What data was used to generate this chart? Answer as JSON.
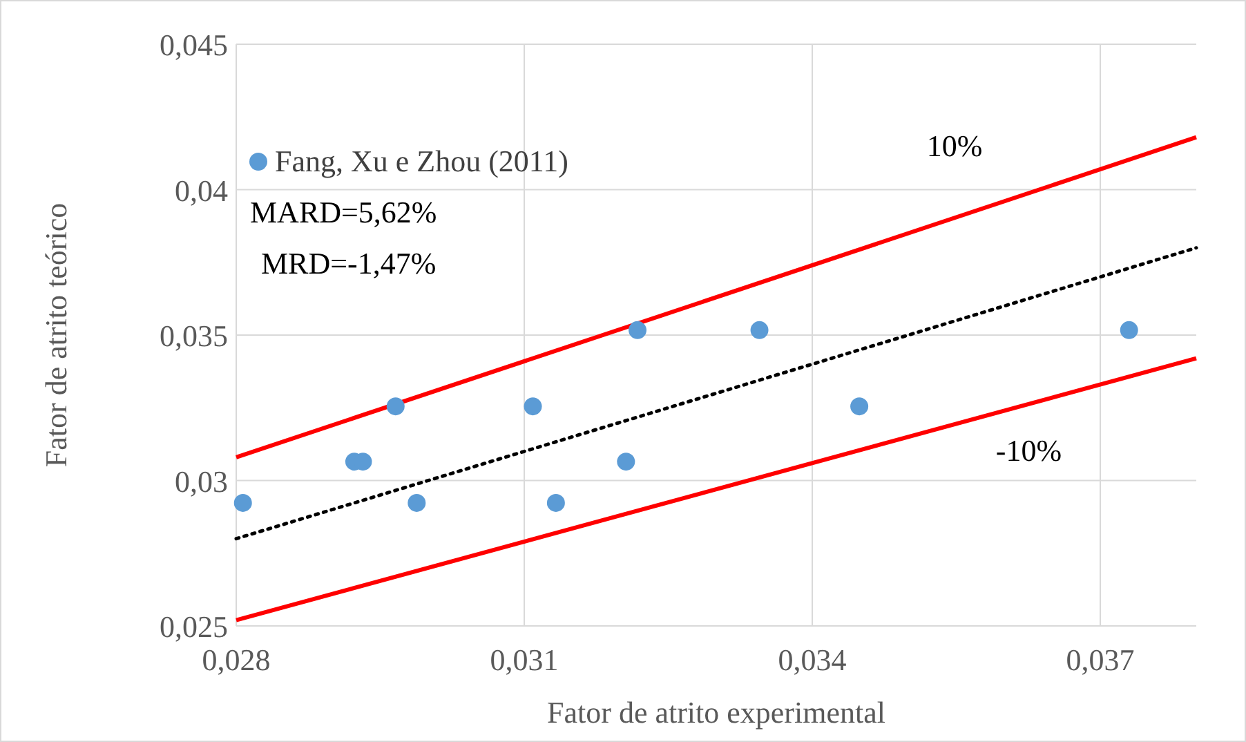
{
  "chart_data": {
    "type": "scatter",
    "xlabel": "Fator de atrito experimental",
    "ylabel": "Fator de atrito teórico",
    "xlim": [
      0.028,
      0.038
    ],
    "ylim": [
      0.025,
      0.045
    ],
    "xticks": [
      {
        "value": 0.028,
        "label": "0,028"
      },
      {
        "value": 0.031,
        "label": "0,031"
      },
      {
        "value": 0.034,
        "label": "0,034"
      },
      {
        "value": 0.037,
        "label": "0,037"
      }
    ],
    "yticks": [
      {
        "value": 0.025,
        "label": "0,025"
      },
      {
        "value": 0.03,
        "label": "0,03"
      },
      {
        "value": 0.035,
        "label": "0,035"
      },
      {
        "value": 0.04,
        "label": "0,04"
      },
      {
        "value": 0.045,
        "label": "0,045"
      }
    ],
    "grid": true,
    "legend": "top left",
    "series": [
      {
        "name": "Fang, Xu e Zhou (2011)",
        "marker": "circle",
        "color": "#5b9bd5",
        "x": [
          0.02807,
          0.02923,
          0.02932,
          0.02966,
          0.02988,
          0.03109,
          0.03133,
          0.03206,
          0.03218,
          0.03345,
          0.03449,
          0.0373
        ],
        "values": [
          0.02923,
          0.03065,
          0.03065,
          0.03255,
          0.02923,
          0.03255,
          0.02923,
          0.03065,
          0.03517,
          0.03517,
          0.03255,
          0.03517
        ]
      },
      {
        "name": "10%",
        "type": "line",
        "marker": "none",
        "color": "#ff0000",
        "line_style": "solid",
        "x": [
          0.028,
          0.038
        ],
        "values": [
          0.0308,
          0.0418
        ]
      },
      {
        "type": "line",
        "marker": "none",
        "color": "#000000",
        "line_style": "dotted",
        "x": [
          0.028,
          0.038
        ],
        "values": [
          0.028,
          0.038
        ]
      },
      {
        "name": "-10%",
        "type": "line",
        "marker": "none",
        "color": "#ff0000",
        "line_style": "solid",
        "x": [
          0.028,
          0.038
        ],
        "values": [
          0.0252,
          0.0342
        ]
      }
    ],
    "annotations": [
      "MARD=5,62%",
      "MRD=-1,47%"
    ]
  }
}
